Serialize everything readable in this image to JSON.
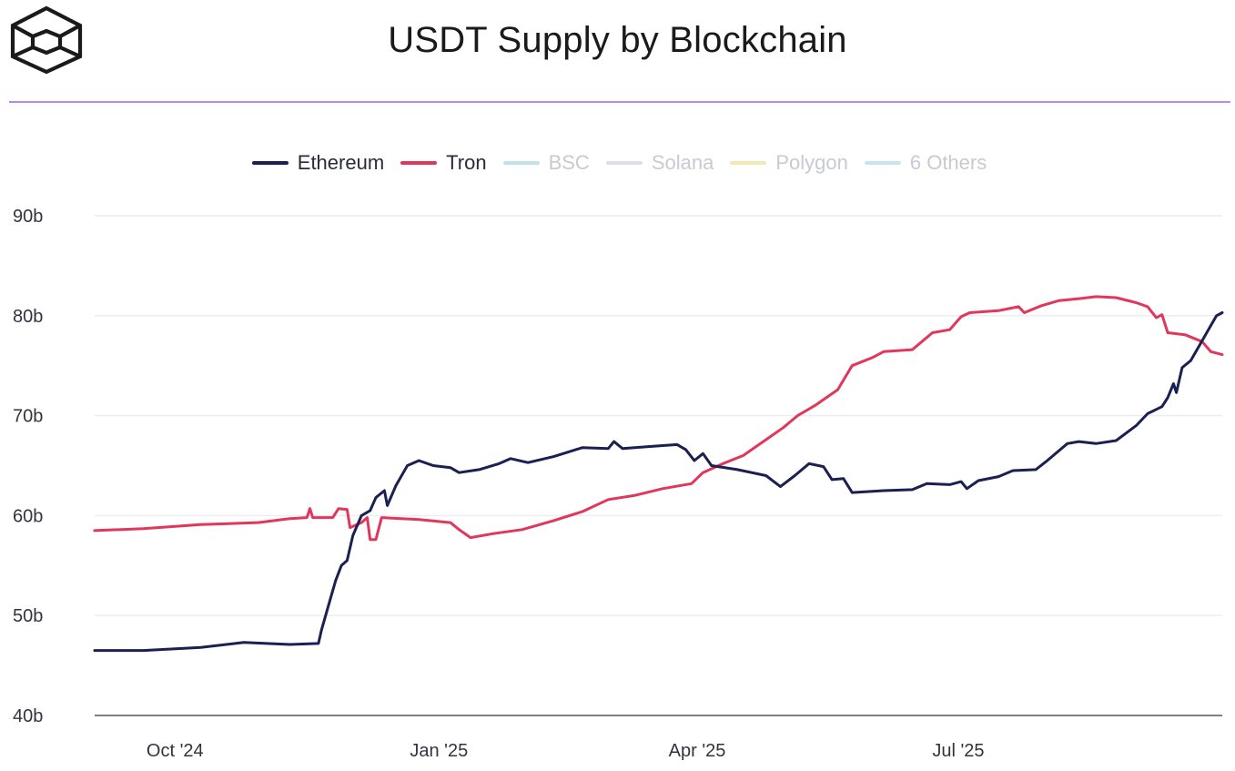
{
  "header": {
    "title": "USDT Supply by Blockchain"
  },
  "colors": {
    "accent": "#b589f2",
    "ethereum": "#1c1f52",
    "tron": "#e0375a"
  },
  "legend": [
    {
      "name": "Ethereum",
      "color": "#1c1f52",
      "active": true
    },
    {
      "name": "Tron",
      "color": "#e0375a",
      "active": true
    },
    {
      "name": "BSC",
      "color": "#bfe3e6",
      "active": false
    },
    {
      "name": "Solana",
      "color": "#e0dcef",
      "active": false
    },
    {
      "name": "Polygon",
      "color": "#f3e8b3",
      "active": false
    },
    {
      "name": "6 Others",
      "color": "#c6e4f3",
      "active": false
    }
  ],
  "chart_data": {
    "type": "line",
    "title": "USDT Supply by Blockchain",
    "xlabel": "",
    "ylabel": "",
    "ylim": [
      40,
      90
    ],
    "y_ticks": [
      "90b",
      "80b",
      "70b",
      "60b",
      "50b",
      "40b"
    ],
    "y_tick_values": [
      90,
      80,
      70,
      60,
      50,
      40
    ],
    "x_ticks": [
      "Oct '24",
      "Jan '25",
      "Apr '25",
      "Jul '25"
    ],
    "x_tick_dates": [
      "2024-10-01",
      "2025-01-01",
      "2025-04-01",
      "2025-07-01"
    ],
    "x_range": [
      "2024-09-03",
      "2025-10-01"
    ],
    "grid": true,
    "legend_position": "top",
    "series": [
      {
        "name": "Ethereum",
        "color": "#1c1f52",
        "points": [
          [
            "2024-09-03",
            46.5
          ],
          [
            "2024-09-20",
            46.5
          ],
          [
            "2024-10-10",
            46.8
          ],
          [
            "2024-10-25",
            47.3
          ],
          [
            "2024-11-10",
            47.1
          ],
          [
            "2024-11-20",
            47.2
          ],
          [
            "2024-11-21",
            48.5
          ],
          [
            "2024-11-24",
            51.5
          ],
          [
            "2024-11-26",
            53.5
          ],
          [
            "2024-11-28",
            55.0
          ],
          [
            "2024-11-30",
            55.5
          ],
          [
            "2024-12-02",
            58.0
          ],
          [
            "2024-12-05",
            60.0
          ],
          [
            "2024-12-08",
            60.5
          ],
          [
            "2024-12-10",
            61.8
          ],
          [
            "2024-12-13",
            62.5
          ],
          [
            "2024-12-14",
            61.0
          ],
          [
            "2024-12-17",
            63.0
          ],
          [
            "2024-12-21",
            65.0
          ],
          [
            "2024-12-25",
            65.5
          ],
          [
            "2024-12-30",
            65.0
          ],
          [
            "2025-01-05",
            64.8
          ],
          [
            "2025-01-08",
            64.3
          ],
          [
            "2025-01-15",
            64.6
          ],
          [
            "2025-01-22",
            65.2
          ],
          [
            "2025-01-26",
            65.7
          ],
          [
            "2025-02-01",
            65.3
          ],
          [
            "2025-02-10",
            65.9
          ],
          [
            "2025-02-20",
            66.8
          ],
          [
            "2025-03-01",
            66.7
          ],
          [
            "2025-03-03",
            67.4
          ],
          [
            "2025-03-06",
            66.7
          ],
          [
            "2025-03-15",
            66.9
          ],
          [
            "2025-03-25",
            67.1
          ],
          [
            "2025-03-28",
            66.6
          ],
          [
            "2025-03-31",
            65.5
          ],
          [
            "2025-04-03",
            66.2
          ],
          [
            "2025-04-06",
            65.0
          ],
          [
            "2025-04-15",
            64.6
          ],
          [
            "2025-04-25",
            64.0
          ],
          [
            "2025-04-30",
            62.9
          ],
          [
            "2025-05-05",
            64.0
          ],
          [
            "2025-05-10",
            65.2
          ],
          [
            "2025-05-15",
            64.9
          ],
          [
            "2025-05-18",
            63.6
          ],
          [
            "2025-05-22",
            63.7
          ],
          [
            "2025-05-25",
            62.3
          ],
          [
            "2025-06-05",
            62.5
          ],
          [
            "2025-06-15",
            62.6
          ],
          [
            "2025-06-20",
            63.2
          ],
          [
            "2025-06-28",
            63.1
          ],
          [
            "2025-07-02",
            63.4
          ],
          [
            "2025-07-04",
            62.7
          ],
          [
            "2025-07-08",
            63.5
          ],
          [
            "2025-07-15",
            63.9
          ],
          [
            "2025-07-20",
            64.5
          ],
          [
            "2025-07-28",
            64.6
          ],
          [
            "2025-08-01",
            65.5
          ],
          [
            "2025-08-08",
            67.2
          ],
          [
            "2025-08-12",
            67.4
          ],
          [
            "2025-08-18",
            67.2
          ],
          [
            "2025-08-25",
            67.5
          ],
          [
            "2025-09-01",
            69.0
          ],
          [
            "2025-09-05",
            70.2
          ],
          [
            "2025-09-10",
            70.9
          ],
          [
            "2025-09-12",
            71.8
          ],
          [
            "2025-09-14",
            73.2
          ],
          [
            "2025-09-15",
            72.3
          ],
          [
            "2025-09-17",
            74.8
          ],
          [
            "2025-09-20",
            75.5
          ],
          [
            "2025-09-23",
            77.0
          ],
          [
            "2025-09-26",
            78.5
          ],
          [
            "2025-09-29",
            80.0
          ],
          [
            "2025-10-01",
            80.3
          ]
        ]
      },
      {
        "name": "Tron",
        "color": "#e0375a",
        "points": [
          [
            "2024-09-03",
            58.5
          ],
          [
            "2024-09-20",
            58.7
          ],
          [
            "2024-10-10",
            59.1
          ],
          [
            "2024-10-30",
            59.3
          ],
          [
            "2024-11-10",
            59.7
          ],
          [
            "2024-11-16",
            59.8
          ],
          [
            "2024-11-17",
            60.7
          ],
          [
            "2024-11-18",
            59.8
          ],
          [
            "2024-11-25",
            59.8
          ],
          [
            "2024-11-27",
            60.7
          ],
          [
            "2024-11-30",
            60.6
          ],
          [
            "2024-12-01",
            58.8
          ],
          [
            "2024-12-05",
            59.3
          ],
          [
            "2024-12-07",
            59.8
          ],
          [
            "2024-12-08",
            57.6
          ],
          [
            "2024-12-10",
            57.6
          ],
          [
            "2024-12-12",
            59.8
          ],
          [
            "2024-12-25",
            59.6
          ],
          [
            "2025-01-05",
            59.3
          ],
          [
            "2025-01-08",
            58.6
          ],
          [
            "2025-01-12",
            57.8
          ],
          [
            "2025-01-20",
            58.2
          ],
          [
            "2025-01-30",
            58.6
          ],
          [
            "2025-02-10",
            59.5
          ],
          [
            "2025-02-20",
            60.4
          ],
          [
            "2025-03-01",
            61.6
          ],
          [
            "2025-03-10",
            62.0
          ],
          [
            "2025-03-20",
            62.7
          ],
          [
            "2025-03-30",
            63.2
          ],
          [
            "2025-04-03",
            64.3
          ],
          [
            "2025-04-10",
            65.2
          ],
          [
            "2025-04-17",
            66.0
          ],
          [
            "2025-04-25",
            67.6
          ],
          [
            "2025-05-01",
            68.8
          ],
          [
            "2025-05-06",
            70.0
          ],
          [
            "2025-05-12",
            71.0
          ],
          [
            "2025-05-20",
            72.6
          ],
          [
            "2025-05-25",
            75.0
          ],
          [
            "2025-06-01",
            75.8
          ],
          [
            "2025-06-05",
            76.4
          ],
          [
            "2025-06-15",
            76.6
          ],
          [
            "2025-06-22",
            78.3
          ],
          [
            "2025-06-28",
            78.6
          ],
          [
            "2025-07-02",
            79.9
          ],
          [
            "2025-07-05",
            80.3
          ],
          [
            "2025-07-15",
            80.5
          ],
          [
            "2025-07-22",
            80.9
          ],
          [
            "2025-07-24",
            80.3
          ],
          [
            "2025-07-30",
            81.0
          ],
          [
            "2025-08-05",
            81.5
          ],
          [
            "2025-08-12",
            81.7
          ],
          [
            "2025-08-18",
            81.9
          ],
          [
            "2025-08-25",
            81.8
          ],
          [
            "2025-09-01",
            81.3
          ],
          [
            "2025-09-05",
            80.9
          ],
          [
            "2025-09-08",
            79.8
          ],
          [
            "2025-09-10",
            80.1
          ],
          [
            "2025-09-12",
            78.3
          ],
          [
            "2025-09-18",
            78.1
          ],
          [
            "2025-09-24",
            77.4
          ],
          [
            "2025-09-27",
            76.4
          ],
          [
            "2025-10-01",
            76.1
          ]
        ]
      }
    ]
  }
}
